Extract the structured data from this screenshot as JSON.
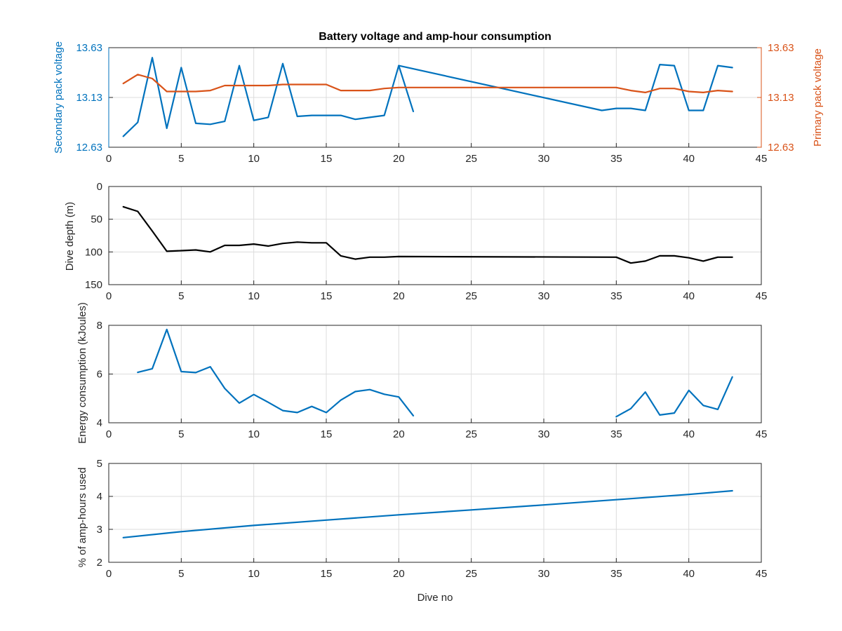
{
  "chart_data": [
    {
      "type": "line",
      "title": "Battery voltage and amp-hour consumption",
      "xlabel": "",
      "ylabel": "Secondary pack voltage",
      "ylabel_right": "Primary pack voltage",
      "xlim": [
        0,
        45
      ],
      "ylim": [
        12.63,
        13.63
      ],
      "ylim_right": [
        12.63,
        13.63
      ],
      "xticks": [
        0,
        5,
        10,
        15,
        20,
        25,
        30,
        35,
        40,
        45
      ],
      "yticks": [
        "12.63",
        "13.13",
        "13.63"
      ],
      "yticks_right": [
        "12.63",
        "13.13",
        "13.63"
      ],
      "grid": true,
      "series": [
        {
          "axis": "left",
          "color": "#0072BD",
          "x": [
            1,
            2,
            3,
            4,
            5,
            6,
            7,
            8,
            9,
            10,
            11,
            12,
            13,
            14,
            15,
            16,
            17,
            18,
            19,
            20,
            21
          ],
          "y": [
            12.74,
            12.88,
            13.53,
            12.82,
            13.43,
            12.87,
            12.86,
            12.89,
            13.45,
            12.9,
            12.93,
            13.47,
            12.94,
            12.95,
            12.95,
            12.95,
            12.91,
            12.93,
            12.95,
            13.45,
            12.99
          ]
        },
        {
          "axis": "left",
          "color": "#0072BD",
          "x": [
            20,
            34,
            35,
            36,
            37,
            38,
            39,
            40,
            41,
            42,
            43
          ],
          "y": [
            13.45,
            13.0,
            13.02,
            13.02,
            13.0,
            13.46,
            13.45,
            13.0,
            13.0,
            13.45,
            13.43
          ]
        },
        {
          "axis": "right",
          "color": "#D95319",
          "x": [
            1,
            2,
            3,
            4,
            5,
            6,
            7,
            8,
            9,
            10,
            11,
            12,
            13,
            14,
            15,
            16,
            17,
            18,
            19,
            20,
            35,
            36,
            37,
            38,
            39,
            40,
            41,
            42,
            43
          ],
          "y": [
            13.27,
            13.36,
            13.32,
            13.19,
            13.19,
            13.19,
            13.2,
            13.25,
            13.25,
            13.25,
            13.25,
            13.26,
            13.26,
            13.26,
            13.26,
            13.2,
            13.2,
            13.2,
            13.22,
            13.23,
            13.23,
            13.2,
            13.18,
            13.22,
            13.22,
            13.19,
            13.18,
            13.2,
            13.19
          ]
        }
      ]
    },
    {
      "type": "line",
      "title": "",
      "xlabel": "",
      "ylabel": "Dive depth (m)",
      "xlim": [
        0,
        45
      ],
      "ylim": [
        0,
        150
      ],
      "y_reversed": true,
      "xticks": [
        0,
        5,
        10,
        15,
        20,
        25,
        30,
        35,
        40,
        45
      ],
      "yticks": [
        0,
        50,
        100,
        150
      ],
      "grid": true,
      "series": [
        {
          "color": "#000000",
          "x": [
            1,
            2,
            3,
            4,
            5,
            6,
            7,
            8,
            9,
            10,
            11,
            12,
            13,
            14,
            15,
            16,
            17,
            18,
            19,
            20,
            35,
            36,
            37,
            38,
            39,
            40,
            41,
            42,
            43
          ],
          "y": [
            31,
            38,
            68,
            99,
            98,
            97,
            100,
            90,
            90,
            88,
            91,
            87,
            85,
            86,
            86,
            106,
            111,
            108,
            108,
            107,
            108,
            117,
            114,
            106,
            106,
            109,
            114,
            108,
            108
          ]
        }
      ]
    },
    {
      "type": "line",
      "title": "",
      "xlabel": "",
      "ylabel": "Energy consumption (kJoules)",
      "xlim": [
        0,
        45
      ],
      "ylim": [
        4,
        8
      ],
      "xticks": [
        0,
        5,
        10,
        15,
        20,
        25,
        30,
        35,
        40,
        45
      ],
      "yticks": [
        4,
        6,
        8
      ],
      "grid": true,
      "series": [
        {
          "color": "#0072BD",
          "x": [
            2,
            3,
            4,
            5,
            6,
            7,
            8,
            9,
            10,
            11,
            12,
            13,
            14,
            15,
            16,
            17,
            18,
            19,
            20,
            21
          ],
          "y": [
            6.07,
            6.22,
            7.83,
            6.1,
            6.06,
            6.3,
            5.41,
            4.81,
            5.16,
            4.84,
            4.5,
            4.42,
            4.67,
            4.42,
            4.93,
            5.28,
            5.36,
            5.17,
            5.06,
            4.29
          ]
        },
        {
          "color": "#0072BD",
          "x": [
            35,
            36,
            37,
            38,
            39,
            40,
            41,
            42,
            43
          ],
          "y": [
            4.25,
            4.58,
            5.26,
            4.32,
            4.4,
            5.33,
            4.71,
            4.55,
            5.88
          ]
        }
      ]
    },
    {
      "type": "line",
      "title": "",
      "xlabel": "Dive no",
      "ylabel": "% of amp-hours used",
      "xlim": [
        0,
        45
      ],
      "ylim": [
        2,
        5
      ],
      "xticks": [
        0,
        5,
        10,
        15,
        20,
        25,
        30,
        35,
        40,
        45
      ],
      "yticks": [
        2,
        3,
        4,
        5
      ],
      "grid": true,
      "series": [
        {
          "color": "#0072BD",
          "x": [
            1,
            5,
            10,
            15,
            20,
            25,
            30,
            35,
            40,
            43
          ],
          "y": [
            2.75,
            2.93,
            3.12,
            3.28,
            3.44,
            3.59,
            3.74,
            3.9,
            4.06,
            4.17
          ]
        }
      ]
    }
  ]
}
